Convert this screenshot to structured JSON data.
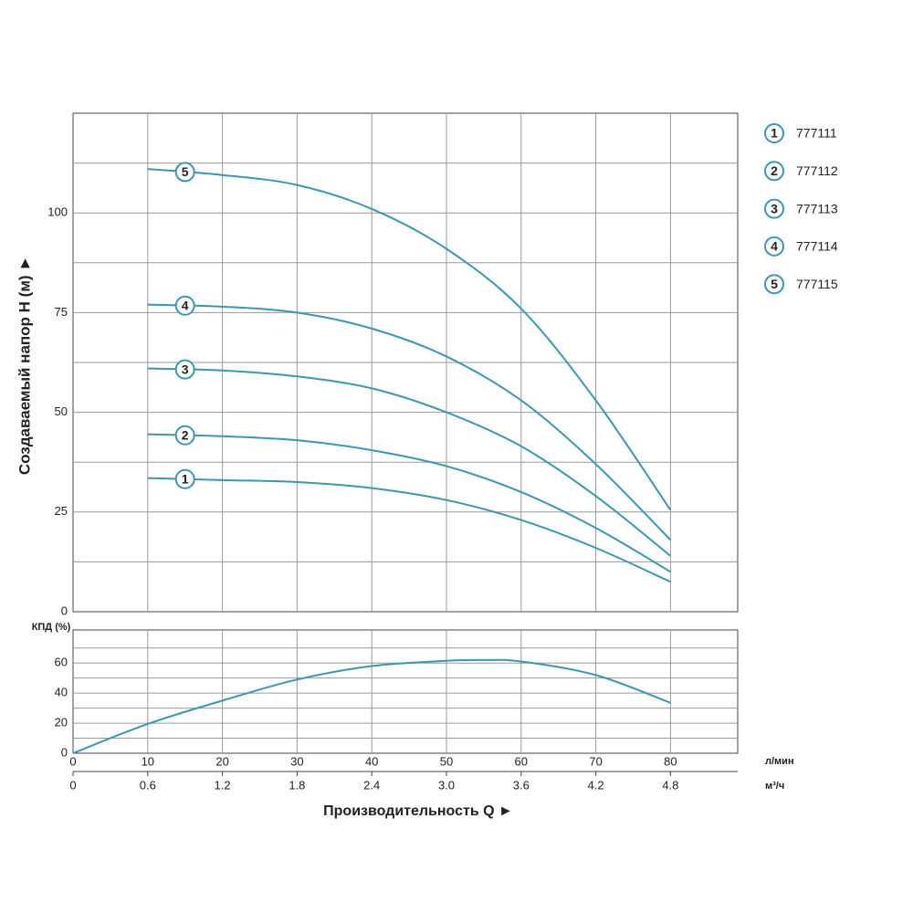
{
  "chart_data": [
    {
      "type": "line",
      "y_label": "Создаваемый напор H (м) ►",
      "xlim": [
        0,
        89
      ],
      "xticks": [
        0,
        10,
        20,
        30,
        40,
        50,
        60,
        70,
        80
      ],
      "ylim": [
        0,
        125
      ],
      "yticks": [
        0,
        25,
        50,
        75,
        100
      ],
      "yminor": [
        12.5,
        37.5,
        62.5,
        87.5,
        112.5
      ],
      "grid": true,
      "x": [
        10,
        20,
        30,
        40,
        50,
        60,
        70,
        80
      ],
      "series": [
        {
          "label": "1",
          "name": "777111",
          "color": "#3b98ad",
          "values": [
            33.5,
            33,
            32.5,
            31,
            28,
            23,
            16,
            7.5
          ]
        },
        {
          "label": "2",
          "name": "777112",
          "color": "#3b98ad",
          "values": [
            44.5,
            44,
            43,
            40.5,
            36.5,
            30,
            21,
            10
          ]
        },
        {
          "label": "3",
          "name": "777113",
          "color": "#3b98ad",
          "values": [
            61,
            60.5,
            59,
            56,
            50,
            41.5,
            29,
            14
          ]
        },
        {
          "label": "4",
          "name": "777114",
          "color": "#3b98ad",
          "values": [
            77,
            76.5,
            75,
            71,
            64,
            53,
            37,
            18
          ]
        },
        {
          "label": "5",
          "name": "777115",
          "color": "#3b98ad",
          "values": [
            111,
            109.5,
            107,
            101,
            91,
            76,
            53,
            25.5
          ]
        }
      ],
      "legend": "right"
    },
    {
      "type": "line",
      "y_label": "КПД (%)",
      "x_label": "Производительность Q ►",
      "x_unit": "л/мин",
      "x2_unit": "м³/ч",
      "xlim": [
        0,
        89
      ],
      "xticks": [
        0,
        10,
        20,
        30,
        40,
        50,
        60,
        70,
        80
      ],
      "x2lim": [
        0,
        5.34
      ],
      "x2ticks": [
        0,
        0.6,
        1.2,
        1.8,
        2.4,
        {
          "value": 3.0,
          "label": "3.0"
        },
        3.6,
        4.2,
        4.8
      ],
      "ylim": [
        0,
        82
      ],
      "yticks": [
        0,
        20,
        40,
        60
      ],
      "yminor": [
        10,
        30,
        50,
        70
      ],
      "grid": true,
      "x": [
        0,
        10,
        20,
        30,
        40,
        50,
        55,
        60,
        70,
        80
      ],
      "series": [
        {
          "color": "#3b98ad",
          "values": [
            0,
            19.5,
            35,
            49,
            58,
            61.5,
            62,
            61,
            52,
            33.5
          ]
        }
      ]
    }
  ]
}
